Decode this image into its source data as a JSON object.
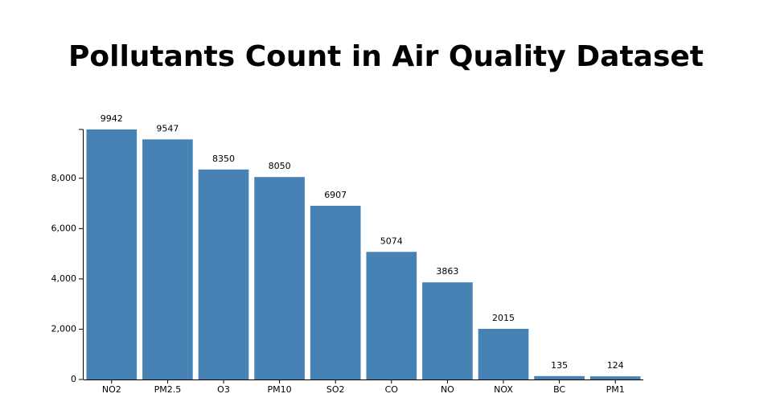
{
  "chart_data": {
    "type": "bar",
    "title": "Pollutants Count in Air Quality Dataset",
    "xlabel": "",
    "ylabel": "",
    "categories": [
      "NO2",
      "PM2.5",
      "O3",
      "PM10",
      "SO2",
      "CO",
      "NO",
      "NOX",
      "BC",
      "PM1"
    ],
    "values": [
      9942,
      9547,
      8350,
      8050,
      6907,
      5074,
      3863,
      2015,
      135,
      124
    ],
    "ylim": [
      0,
      9942
    ],
    "yticks": [
      0,
      2000,
      4000,
      6000,
      8000
    ],
    "ytick_labels": [
      "0",
      "2,000",
      "4,000",
      "6,000",
      "8,000"
    ],
    "grid": false,
    "bar_color": "#4682b4"
  }
}
